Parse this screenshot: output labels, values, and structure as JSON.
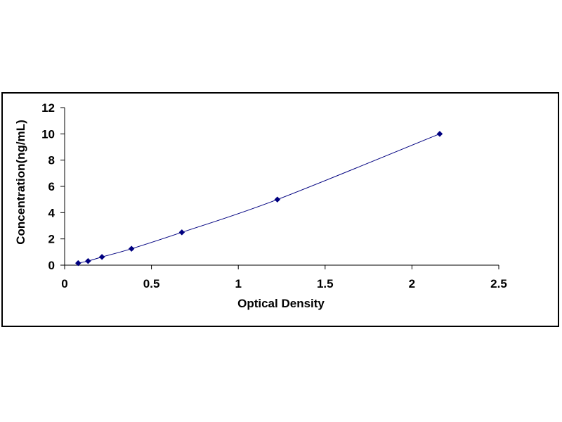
{
  "chart_data": {
    "type": "scatter",
    "title": "",
    "xlabel": "Optical Density",
    "ylabel": "Concentration(ng/mL)",
    "xlim": [
      0,
      2.5
    ],
    "ylim": [
      0,
      12
    ],
    "x_ticks": [
      0,
      0.5,
      1,
      1.5,
      2,
      2.5
    ],
    "x_tick_labels": [
      "0",
      "0.5",
      "1",
      "1.5",
      "2",
      "2.5"
    ],
    "y_ticks": [
      0,
      2,
      4,
      6,
      8,
      10,
      12
    ],
    "y_tick_labels": [
      "0",
      "2",
      "4",
      "6",
      "8",
      "10",
      "12"
    ],
    "grid": false,
    "legend": "none",
    "trendline": true,
    "series": [
      {
        "x": [
          0.078,
          0.135,
          0.215,
          0.385,
          0.675,
          1.225,
          2.16
        ],
        "y": [
          0.156,
          0.312,
          0.625,
          1.25,
          2.5,
          5,
          10
        ]
      }
    ],
    "colors": {
      "marker": "#000080",
      "line": "#000080",
      "axis": "#000000"
    }
  }
}
